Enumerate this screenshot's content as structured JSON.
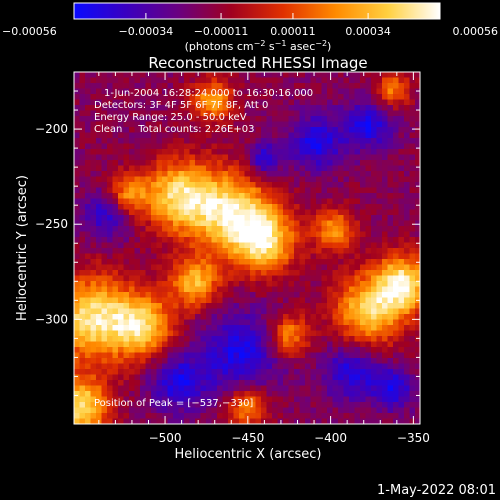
{
  "chart_data": {
    "type": "heatmap",
    "title": "Reconstructed RHESSI Image",
    "xlabel": "Heliocentric X (arcsec)",
    "ylabel": "Heliocentric Y (arcsec)",
    "xlim": [
      -555,
      -346
    ],
    "ylim": [
      -355,
      -170
    ],
    "xticks": [
      -500,
      -450,
      -400,
      -350
    ],
    "xtick_labels": [
      "−500",
      "−450",
      "−400",
      "−350"
    ],
    "yticks": [
      -200,
      -250,
      -300
    ],
    "ytick_labels": [
      "−200",
      "−250",
      "−300"
    ],
    "colorbar": {
      "range": [
        -0.00056,
        0.00056
      ],
      "ticks": [
        -0.00056,
        -0.00034,
        -0.00011,
        0.00011,
        0.00034,
        0.00056
      ],
      "tick_labels": [
        "−0.00056",
        "−0.00034",
        "−0.00011",
        "0.00011",
        "0.00034",
        "0.00056"
      ],
      "units_prefix": "(photons cm",
      "units_exp1": "−2",
      "units_mid1": " s",
      "units_exp2": "−1",
      "units_mid2": " asec",
      "units_exp3": "−2",
      "units_suffix": ")",
      "colors": [
        "#0a0aff",
        "#3a00c0",
        "#6a0080",
        "#a00020",
        "#e03000",
        "#ff8a00",
        "#ffd040",
        "#ffffff"
      ]
    },
    "annotations": [
      "1-Jun-2004 16:28:24.000 to 16:30:16.000",
      "Detectors: 3F 4F 5F 6F 7F 8F, Att 0",
      "Energy Range: 25.0 - 50.0 keV",
      "Clean     Total counts: 2.26E+03"
    ],
    "peak_label": "Position of Peak = [−537,−330]",
    "peak": [
      -537,
      -330
    ],
    "grid": false
  },
  "footer": {
    "date": "1-May-2022 08:01"
  }
}
